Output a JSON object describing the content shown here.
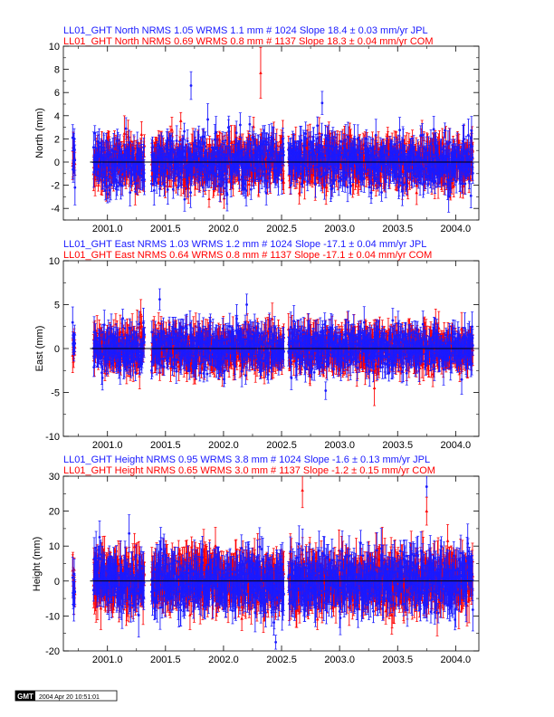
{
  "colors": {
    "jpl": "#1a1aff",
    "com": "#ff0000",
    "axis": "#000000",
    "zero_line": "#000000"
  },
  "footer": {
    "logo": "GMT",
    "timestamp": "2004 Apr 20 10:51:01"
  },
  "chart_data": [
    {
      "type": "scatter",
      "component": "North",
      "ylabel": "North (mm)",
      "header_jpl": "LL01_GHT North NRMS 1.05 WRMS  1.1 mm # 1024 Slope   18.4 ±  0.03 mm/yr JPL",
      "header_com": "LL01_GHT North NRMS 0.69 WRMS  0.8 mm # 1137 Slope   18.3 ±  0.04 mm/yr COM",
      "xlim": [
        2000.62,
        2004.2
      ],
      "ylim": [
        -5,
        10
      ],
      "xticks": [
        2001.0,
        2001.5,
        2002.0,
        2002.5,
        2003.0,
        2003.5,
        2004.0
      ],
      "xticklabels": [
        "2001.0",
        "2001.5",
        "2002.0",
        "2002.5",
        "2003.0",
        "2003.5",
        "2004.0"
      ],
      "yticks": [
        -4,
        -2,
        0,
        2,
        4,
        6,
        8,
        10
      ],
      "yticklabels": [
        "-4",
        "-2",
        "0",
        "2",
        "4",
        "6",
        "8",
        "10"
      ],
      "data_windows": [
        [
          2000.7,
          2000.72
        ],
        [
          2000.88,
          2001.32
        ],
        [
          2001.38,
          2002.52
        ],
        [
          2002.56,
          2004.15
        ]
      ],
      "approx_scatter_mm": 1.1,
      "approx_errbar_mm": 1.0,
      "outliers": [
        {
          "series": "COM",
          "x": 2002.32,
          "y": 7.7,
          "err": 2.2
        },
        {
          "series": "JPL",
          "x": 2001.72,
          "y": 6.6,
          "err": 1.2
        },
        {
          "series": "JPL",
          "x": 2002.85,
          "y": 5.1,
          "err": 1.0
        },
        {
          "series": "JPL",
          "x": 2000.72,
          "y": -2.2,
          "err": 1.5
        }
      ],
      "series": [
        {
          "name": "JPL",
          "n": 1024,
          "nrms": 1.05,
          "wrms_mm": 1.1,
          "slope_mm_per_yr": 18.4,
          "slope_err": 0.03
        },
        {
          "name": "COM",
          "n": 1137,
          "nrms": 0.69,
          "wrms_mm": 0.8,
          "slope_mm_per_yr": 18.3,
          "slope_err": 0.04
        }
      ]
    },
    {
      "type": "scatter",
      "component": "East",
      "ylabel": "East (mm)",
      "header_jpl": "LL01_GHT East NRMS 1.03 WRMS  1.2 mm # 1024 Slope  -17.1 ±  0.04 mm/yr JPL",
      "header_com": "LL01_GHT East NRMS 0.64 WRMS  0.8 mm # 1137 Slope  -17.1 ±  0.04 mm/yr COM",
      "xlim": [
        2000.62,
        2004.2
      ],
      "ylim": [
        -10,
        10
      ],
      "xticks": [
        2001.0,
        2001.5,
        2002.0,
        2002.5,
        2003.0,
        2003.5,
        2004.0
      ],
      "xticklabels": [
        "2001.0",
        "2001.5",
        "2002.0",
        "2002.5",
        "2003.0",
        "2003.5",
        "2004.0"
      ],
      "yticks": [
        -10,
        -5,
        0,
        5,
        10
      ],
      "yticklabels": [
        "-10",
        "-5",
        "0",
        "5",
        "10"
      ],
      "data_windows": [
        [
          2000.7,
          2000.72
        ],
        [
          2000.88,
          2001.32
        ],
        [
          2001.38,
          2002.52
        ],
        [
          2002.56,
          2004.15
        ]
      ],
      "approx_scatter_mm": 1.2,
      "approx_errbar_mm": 1.3,
      "outliers": [
        {
          "series": "JPL",
          "x": 2001.45,
          "y": 5.6,
          "err": 1.2
        },
        {
          "series": "JPL",
          "x": 2002.2,
          "y": 5.0,
          "err": 1.2
        },
        {
          "series": "JPL",
          "x": 2002.88,
          "y": -4.8,
          "err": 1.0
        },
        {
          "series": "COM",
          "x": 2003.3,
          "y": -4.5,
          "err": 2.0
        }
      ],
      "series": [
        {
          "name": "JPL",
          "n": 1024,
          "nrms": 1.03,
          "wrms_mm": 1.2,
          "slope_mm_per_yr": -17.1,
          "slope_err": 0.04
        },
        {
          "name": "COM",
          "n": 1137,
          "nrms": 0.64,
          "wrms_mm": 0.8,
          "slope_mm_per_yr": -17.1,
          "slope_err": 0.04
        }
      ]
    },
    {
      "type": "scatter",
      "component": "Height",
      "ylabel": "Height (mm)",
      "header_jpl": "LL01_GHT Height NRMS 0.95 WRMS  3.8 mm # 1024 Slope   -1.6 ±  0.13 mm/yr JPL",
      "header_com": "LL01_GHT Height NRMS 0.65 WRMS  3.0 mm # 1137 Slope   -1.2 ±  0.15 mm/yr COM",
      "xlim": [
        2000.62,
        2004.2
      ],
      "ylim": [
        -20,
        30
      ],
      "xticks": [
        2001.0,
        2001.5,
        2002.0,
        2002.5,
        2003.0,
        2003.5,
        2004.0
      ],
      "xticklabels": [
        "2001.0",
        "2001.5",
        "2002.0",
        "2002.5",
        "2003.0",
        "2003.5",
        "2004.0"
      ],
      "yticks": [
        -20,
        -10,
        0,
        10,
        20,
        30
      ],
      "yticklabels": [
        "-20",
        "-10",
        "0",
        "10",
        "20",
        "30"
      ],
      "data_windows": [
        [
          2000.7,
          2000.72
        ],
        [
          2000.88,
          2001.32
        ],
        [
          2001.38,
          2002.52
        ],
        [
          2002.56,
          2004.15
        ]
      ],
      "approx_scatter_mm": 3.8,
      "approx_errbar_mm": 4.5,
      "outliers": [
        {
          "series": "COM",
          "x": 2002.68,
          "y": 26.0,
          "err": 5.0
        },
        {
          "series": "JPL",
          "x": 2003.75,
          "y": 27.0,
          "err": 3.0
        },
        {
          "series": "COM",
          "x": 2003.75,
          "y": 20.0,
          "err": 4.0
        },
        {
          "series": "JPL",
          "x": 2002.45,
          "y": -17.5,
          "err": 2.0
        }
      ],
      "series": [
        {
          "name": "JPL",
          "n": 1024,
          "nrms": 0.95,
          "wrms_mm": 3.8,
          "slope_mm_per_yr": -1.6,
          "slope_err": 0.13
        },
        {
          "name": "COM",
          "n": 1137,
          "nrms": 0.65,
          "wrms_mm": 3.0,
          "slope_mm_per_yr": -1.2,
          "slope_err": 0.15
        }
      ]
    }
  ]
}
